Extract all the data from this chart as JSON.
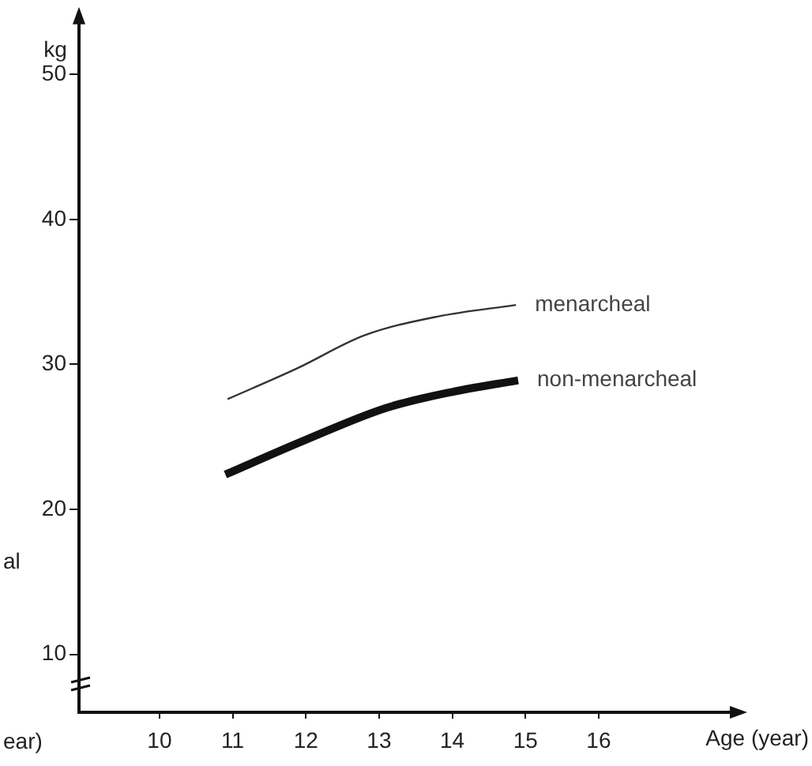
{
  "chart_data": {
    "type": "line",
    "xlabel": "Age (year)",
    "ylabel": "kg",
    "xlim": [
      8.9,
      17.9
    ],
    "xticks": [
      10,
      11,
      12,
      13,
      14,
      15,
      16
    ],
    "ylim": [
      6,
      54
    ],
    "yticks": [
      10,
      20,
      30,
      40,
      50
    ],
    "grid": false,
    "legend": false,
    "marker": "none",
    "line_style": "solid",
    "series": [
      {
        "name": "menarcheal",
        "color": "#333333",
        "x": [
          10.93,
          11.87,
          12.8,
          13.8,
          14.87
        ],
        "values": [
          27.6,
          29.7,
          32.0,
          33.3,
          34.1
        ]
      },
      {
        "name": "non-menarcheal",
        "color": "#111111",
        "x": [
          10.9,
          12.0,
          13.1,
          14.0,
          14.9
        ],
        "values": [
          22.4,
          24.8,
          27.0,
          28.1,
          28.9
        ]
      }
    ],
    "annotations": [
      "al",
      "ear)"
    ]
  }
}
